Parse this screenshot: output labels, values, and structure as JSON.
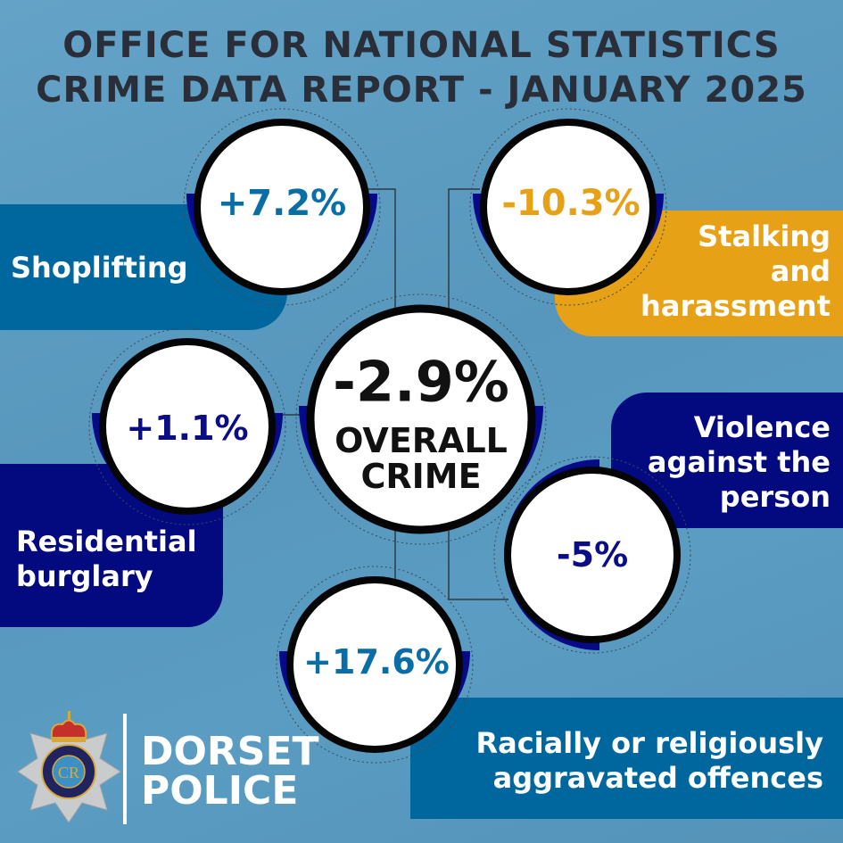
{
  "header": {
    "line1": "OFFICE FOR NATIONAL STATISTICS",
    "line2": "CRIME DATA REPORT - JANUARY 2025"
  },
  "overall": {
    "value": "-2.9%",
    "label_line1": "OVERALL",
    "label_line2": "CRIME"
  },
  "categories": [
    {
      "label": "Shoplifting",
      "value": "+7.2%",
      "value_color": "#0a6ea6",
      "box_color": "#00679e"
    },
    {
      "label_lines": [
        "Stalking",
        "and",
        "harassment"
      ],
      "value": "-10.3%",
      "value_color": "#e6a117",
      "box_color": "#e6a117"
    },
    {
      "label_lines": [
        "Residential",
        "burglary"
      ],
      "value": "+1.1%",
      "value_color": "#0b0d86",
      "box_color": "#030a80"
    },
    {
      "label_lines": [
        "Violence",
        "against the",
        "person"
      ],
      "value": "-5%",
      "value_color": "#0b0d86",
      "box_color": "#030a80"
    },
    {
      "label_lines": [
        "Racially or religiously",
        "aggravated offences"
      ],
      "value": "+17.6%",
      "value_color": "#0a6ea6",
      "box_color": "#00679e"
    }
  ],
  "logo": {
    "line1": "DORSET",
    "line2": "POLICE",
    "badge_top": "DORSET",
    "badge_bottom": "POLICE",
    "cypher": "CR III"
  }
}
